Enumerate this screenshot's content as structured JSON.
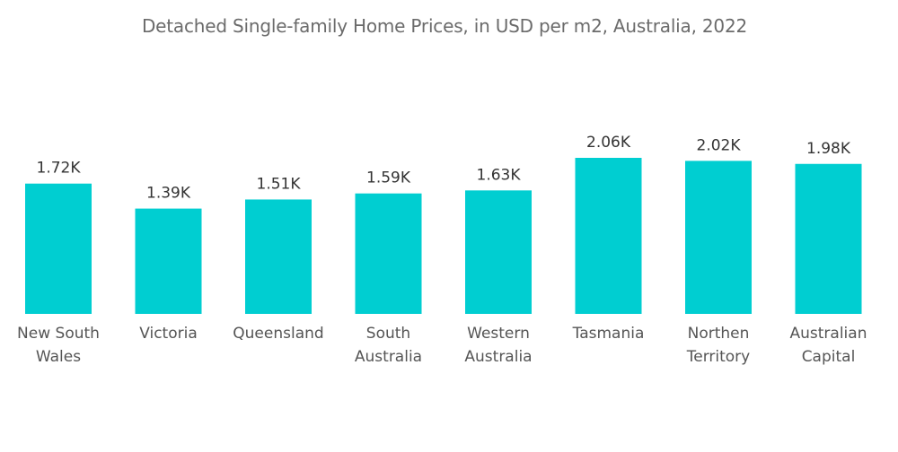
{
  "chart_data": {
    "type": "bar",
    "title": "Detached Single-family Home Prices, in USD per m2, Australia, 2022",
    "categories": [
      [
        "New South",
        "Wales"
      ],
      [
        "Victoria"
      ],
      [
        "Queensland"
      ],
      [
        "South",
        "Australia"
      ],
      [
        "Western",
        "Australia"
      ],
      [
        "Tasmania"
      ],
      [
        "Northen",
        "Territory"
      ],
      [
        "Australian",
        "Capital"
      ]
    ],
    "values": [
      1720,
      1390,
      1510,
      1590,
      1630,
      2060,
      2020,
      1980
    ],
    "value_labels": [
      "1.72K",
      "1.39K",
      "1.51K",
      "1.59K",
      "1.63K",
      "2.06K",
      "2.02K",
      "1.98K"
    ],
    "bar_color": "#00CED1",
    "xlabel": "",
    "ylabel": "",
    "ylim": [
      0,
      2060
    ],
    "grid": false,
    "legend": "none"
  }
}
